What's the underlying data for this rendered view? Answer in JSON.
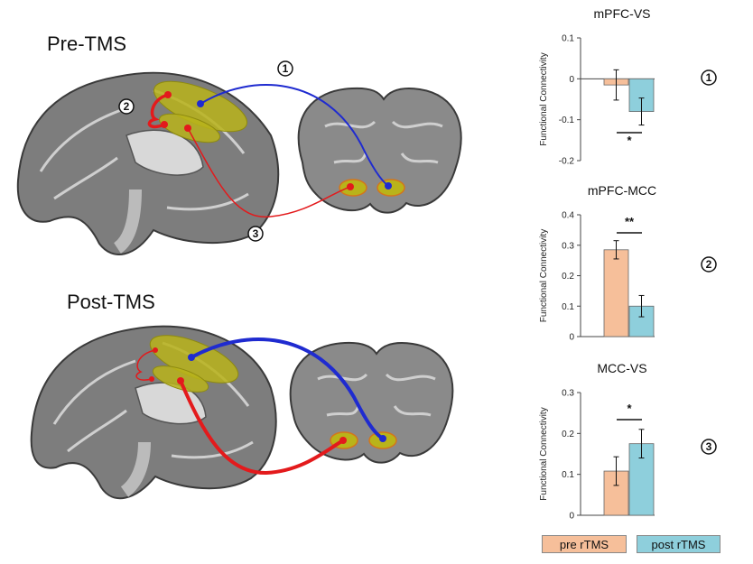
{
  "headings": {
    "pre": "Pre-TMS",
    "post": "Post-TMS"
  },
  "callouts": {
    "one": "1",
    "two": "2",
    "three": "3"
  },
  "legend": {
    "pre": "pre rTMS",
    "post": "post rTMS"
  },
  "colors": {
    "pre": "#f6bf9a",
    "post": "#8ecfdc",
    "connection_vs": "#1f2bd0",
    "connection_mcc": "#e31a1c",
    "roi": "#b9b31a",
    "brain": "#8a8a8a"
  },
  "chart_data": [
    {
      "type": "bar",
      "title": "mPFC-VS",
      "ylabel": "Functional Connectivity",
      "categories": [
        "pre rTMS",
        "post rTMS"
      ],
      "values": [
        -0.015,
        -0.08
      ],
      "errors": [
        0.037,
        0.033
      ],
      "ylim": [
        -0.2,
        0.1
      ],
      "yticks": [
        "0.1",
        "0",
        "-0.1",
        "-0.2"
      ],
      "significance": "*",
      "badge": "1"
    },
    {
      "type": "bar",
      "title": "mPFC-MCC",
      "ylabel": "Functional Connectivity",
      "categories": [
        "pre rTMS",
        "post rTMS"
      ],
      "values": [
        0.285,
        0.1
      ],
      "errors": [
        0.03,
        0.035
      ],
      "ylim": [
        0,
        0.4
      ],
      "yticks": [
        "0.4",
        "0.3",
        "0.2",
        "0.1",
        "0"
      ],
      "significance": "**",
      "badge": "2"
    },
    {
      "type": "bar",
      "title": "MCC-VS",
      "ylabel": "Functional Connectivity",
      "categories": [
        "pre rTMS",
        "post rTMS"
      ],
      "values": [
        0.108,
        0.175
      ],
      "errors": [
        0.035,
        0.035
      ],
      "ylim": [
        0,
        0.3
      ],
      "yticks": [
        "0.3",
        "0.2",
        "0.1",
        "0"
      ],
      "significance": "*",
      "badge": "3"
    }
  ]
}
